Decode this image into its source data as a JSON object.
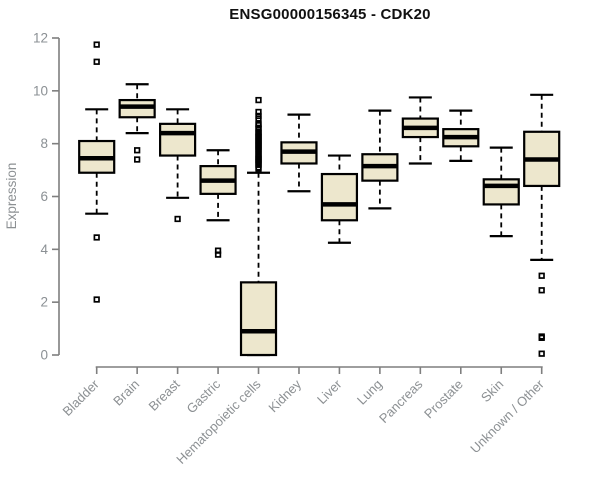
{
  "chart_data": {
    "type": "boxplot",
    "title": "ENSG00000156345 - CDK20",
    "ylabel": "Expression",
    "xlabel": "",
    "ylim": [
      0,
      12
    ],
    "yticks": [
      0,
      2,
      4,
      6,
      8,
      10,
      12
    ],
    "grid": false,
    "legend": "none",
    "categories": [
      "Bladder",
      "Brain",
      "Breast",
      "Gastric",
      "Hematopoietic cells",
      "Kidney",
      "Liver",
      "Lung",
      "Pancreas",
      "Prostate",
      "Skin",
      "Unknown / Other"
    ],
    "series": [
      {
        "name": "Bladder",
        "whisker_low": 5.35,
        "q1": 6.9,
        "median": 7.45,
        "q3": 8.1,
        "whisker_high": 9.3,
        "outliers": [
          11.75,
          11.1,
          4.45,
          2.1
        ]
      },
      {
        "name": "Brain",
        "whisker_low": 8.4,
        "q1": 9.0,
        "median": 9.4,
        "q3": 9.65,
        "whisker_high": 10.25,
        "outliers": [
          7.75,
          7.4
        ]
      },
      {
        "name": "Breast",
        "whisker_low": 5.95,
        "q1": 7.55,
        "median": 8.4,
        "q3": 8.75,
        "whisker_high": 9.3,
        "outliers": [
          5.15
        ]
      },
      {
        "name": "Gastric",
        "whisker_low": 5.1,
        "q1": 6.1,
        "median": 6.6,
        "q3": 7.15,
        "whisker_high": 7.75,
        "outliers": [
          3.95,
          3.8
        ]
      },
      {
        "name": "Hematopoietic cells",
        "whisker_low": 0.0,
        "q1": 0.0,
        "median": 0.9,
        "q3": 2.75,
        "whisker_high": 6.9,
        "outliers": [
          9.65,
          9.2,
          9.05,
          8.95,
          8.75,
          8.7,
          8.6,
          8.55,
          8.45,
          8.4,
          8.35,
          8.3,
          8.25,
          8.2,
          8.15,
          8.1,
          8.05,
          8.0,
          7.95,
          7.9,
          7.85,
          7.8,
          7.75,
          7.7,
          7.6,
          7.55,
          7.5,
          7.45,
          7.4,
          7.35,
          7.3,
          7.25,
          7.2,
          7.1,
          7.05
        ]
      },
      {
        "name": "Kidney",
        "whisker_low": 6.2,
        "q1": 7.25,
        "median": 7.7,
        "q3": 8.05,
        "whisker_high": 9.1,
        "outliers": []
      },
      {
        "name": "Liver",
        "whisker_low": 4.25,
        "q1": 5.1,
        "median": 5.7,
        "q3": 6.85,
        "whisker_high": 7.55,
        "outliers": []
      },
      {
        "name": "Lung",
        "whisker_low": 5.55,
        "q1": 6.6,
        "median": 7.15,
        "q3": 7.6,
        "whisker_high": 9.25,
        "outliers": []
      },
      {
        "name": "Pancreas",
        "whisker_low": 7.25,
        "q1": 8.25,
        "median": 8.6,
        "q3": 8.95,
        "whisker_high": 9.75,
        "outliers": []
      },
      {
        "name": "Prostate",
        "whisker_low": 7.35,
        "q1": 7.9,
        "median": 8.25,
        "q3": 8.55,
        "whisker_high": 9.25,
        "outliers": []
      },
      {
        "name": "Skin",
        "whisker_low": 4.5,
        "q1": 5.7,
        "median": 6.4,
        "q3": 6.65,
        "whisker_high": 7.85,
        "outliers": []
      },
      {
        "name": "Unknown / Other",
        "whisker_low": 3.6,
        "q1": 6.4,
        "median": 7.4,
        "q3": 8.45,
        "whisker_high": 9.85,
        "outliers": [
          3.0,
          2.45,
          0.7,
          0.65,
          0.05
        ]
      }
    ],
    "colors": {
      "background": "#ffffff",
      "box_fill": "#ede7cd",
      "box_border": "#000000",
      "median": "#000000",
      "whisker": "#000000",
      "outlier": "#000000",
      "axis": "#7f7f7f",
      "tick_label": "#8b9094",
      "axis_label": "#8c9093",
      "title": "#111111"
    }
  }
}
